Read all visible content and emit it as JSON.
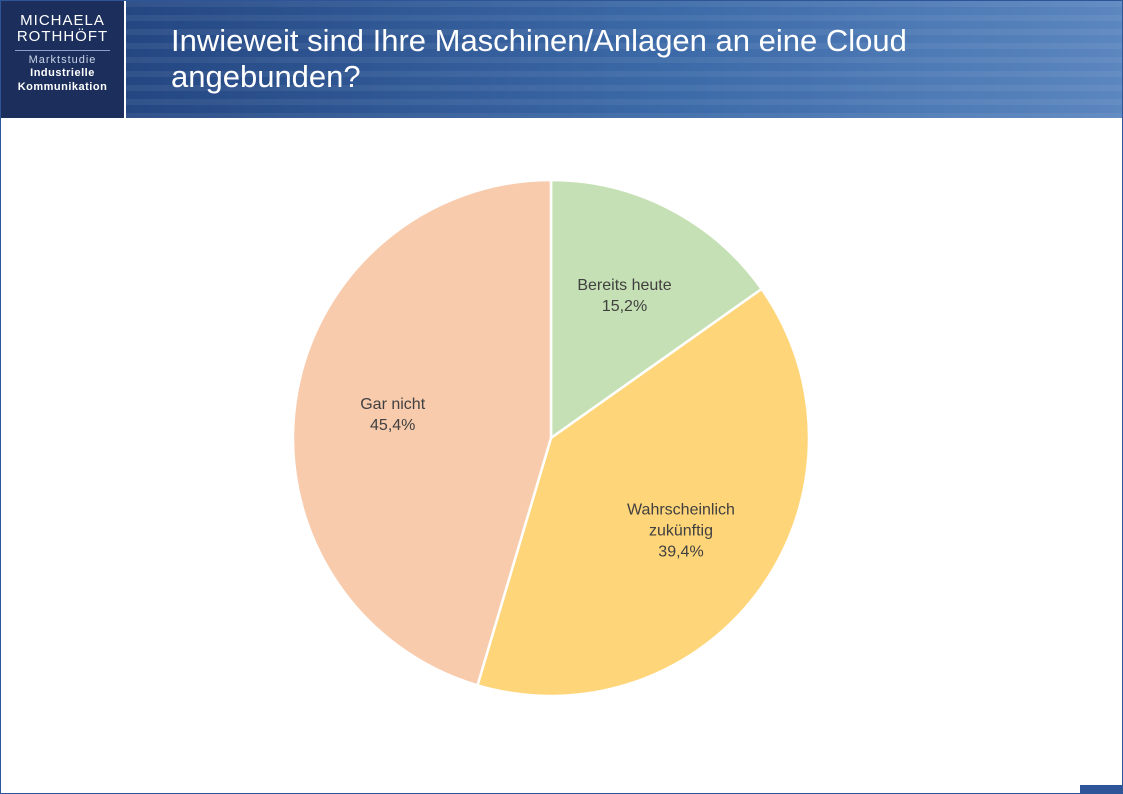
{
  "header": {
    "logo": [
      "MICHAELA",
      "ROTHHÖFT"
    ],
    "study": "Marktstudie",
    "topic": [
      "Industrielle",
      "Kommunikation"
    ]
  },
  "chart_data": {
    "type": "pie",
    "title": "Inwieweit sind Ihre Maschinen/Anlagen an eine Cloud angebunden?",
    "categories": [
      "Bereits heute",
      "Wahrscheinlich zukünftig",
      "Gar nicht"
    ],
    "values": [
      15.2,
      39.4,
      45.4
    ],
    "value_labels": [
      "15,2%",
      "39,4%",
      "45,4%"
    ],
    "colors": [
      "#c5e0b4",
      "#ffd579",
      "#f8cbad"
    ]
  }
}
